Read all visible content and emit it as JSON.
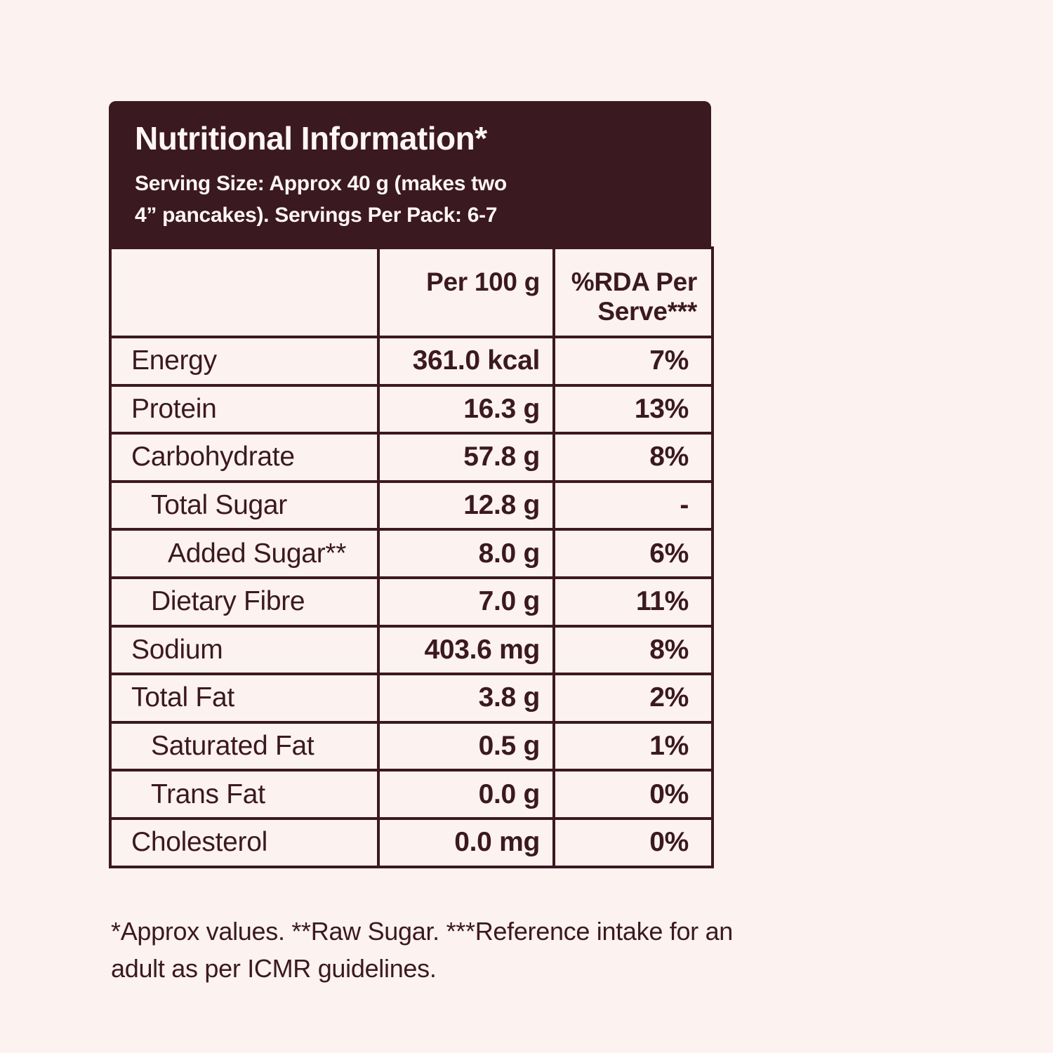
{
  "colors": {
    "background": "#fcf2f0",
    "panel": "#3b1920",
    "panel_text": "#fdf6f4",
    "text": "#3b1920"
  },
  "header": {
    "title": "Nutritional Information*",
    "serving_line1": "Serving Size: Approx 40 g (makes two",
    "serving_line2": "4” pancakes). Servings Per Pack: 6-7"
  },
  "table": {
    "columns": [
      "",
      "Per 100 g",
      "%RDA Per Serve***"
    ],
    "rows": [
      {
        "label": "Energy",
        "indent": 0,
        "per100g": "361.0 kcal",
        "rda": "7%"
      },
      {
        "label": "Protein",
        "indent": 0,
        "per100g": "16.3 g",
        "rda": "13%"
      },
      {
        "label": "Carbohydrate",
        "indent": 0,
        "per100g": "57.8 g",
        "rda": "8%"
      },
      {
        "label": "Total Sugar",
        "indent": 1,
        "per100g": "12.8 g",
        "rda": "-"
      },
      {
        "label": "Added Sugar**",
        "indent": 2,
        "per100g": "8.0 g",
        "rda": "6%"
      },
      {
        "label": "Dietary Fibre",
        "indent": 1,
        "per100g": "7.0 g",
        "rda": "11%"
      },
      {
        "label": "Sodium",
        "indent": 0,
        "per100g": "403.6 mg",
        "rda": "8%"
      },
      {
        "label": "Total Fat",
        "indent": 0,
        "per100g": "3.8 g",
        "rda": "2%"
      },
      {
        "label": "Saturated Fat",
        "indent": 1,
        "per100g": "0.5 g",
        "rda": "1%"
      },
      {
        "label": "Trans Fat",
        "indent": 1,
        "per100g": "0.0 g",
        "rda": "0%"
      },
      {
        "label": "Cholesterol",
        "indent": 0,
        "per100g": "0.0 mg",
        "rda": "0%"
      }
    ]
  },
  "footer": {
    "note_line1": "*Approx values. **Raw Sugar. ***Reference intake for an",
    "note_line2": "adult as per ICMR guidelines."
  }
}
